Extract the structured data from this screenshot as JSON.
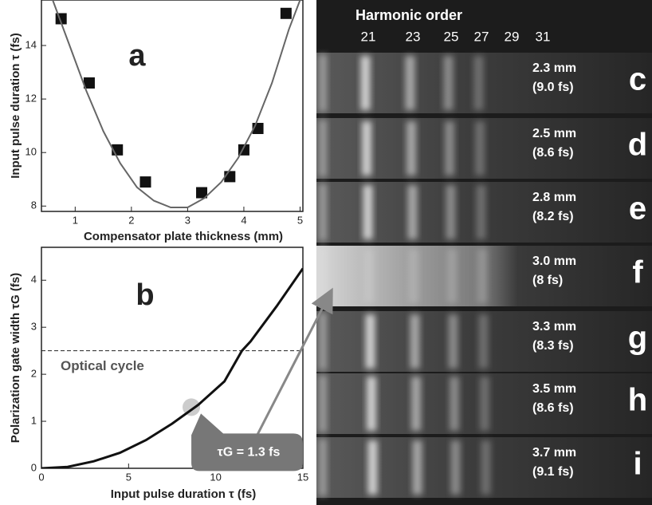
{
  "chart_data": [
    {
      "type": "scatter",
      "label": "a",
      "x_label": "Compensator plate thickness (mm)",
      "y_label": "Input pulse duration τ (fs)",
      "xlim": [
        0.4,
        5.05
      ],
      "ylim": [
        7.8,
        15.7
      ],
      "xticks": [
        1,
        2,
        3,
        4,
        5
      ],
      "yticks": [
        8,
        10,
        12,
        14
      ],
      "series": [
        {
          "marker": "square",
          "color": "#111111",
          "x": [
            0.75,
            1.25,
            1.75,
            2.25,
            3.25,
            3.75,
            4.0,
            4.25,
            4.75
          ],
          "values": [
            15.0,
            12.6,
            10.1,
            8.9,
            8.5,
            9.1,
            10.1,
            10.9,
            15.2
          ]
        },
        {
          "marker": "line",
          "color": "#666666",
          "x": [
            0.6,
            0.9,
            1.2,
            1.5,
            1.8,
            2.1,
            2.4,
            2.7,
            3.0,
            3.3,
            3.6,
            3.9,
            4.2,
            4.5,
            4.8,
            5.0
          ],
          "values": [
            15.7,
            14.0,
            12.3,
            10.8,
            9.6,
            8.7,
            8.2,
            7.95,
            7.95,
            8.3,
            8.9,
            9.8,
            11.0,
            12.6,
            14.6,
            15.7
          ]
        }
      ]
    },
    {
      "type": "line",
      "label": "b",
      "x_label": "Input pulse duration τ (fs)",
      "y_label": "Polarization gate width τG (fs)",
      "xlim": [
        0,
        15
      ],
      "ylim": [
        0,
        4.7
      ],
      "xticks": [
        0,
        5,
        10,
        15
      ],
      "yticks": [
        0,
        1,
        2,
        3,
        4
      ],
      "series": [
        {
          "marker": "line",
          "color": "#111111",
          "x": [
            0,
            1.5,
            3,
            4.5,
            6,
            7.5,
            9,
            10.5,
            11.5,
            12,
            13.5,
            15
          ],
          "values": [
            0,
            0.03,
            0.15,
            0.33,
            0.6,
            0.95,
            1.35,
            1.85,
            2.5,
            2.7,
            3.45,
            4.25
          ]
        }
      ],
      "hline": {
        "value": 2.5,
        "label": "Optical cycle"
      },
      "highlight": {
        "x": 8.6,
        "y": 1.3,
        "label": "τG = 1.3 fs"
      }
    }
  ],
  "image_panel": {
    "header": "Harmonic order",
    "orders": [
      21,
      23,
      25,
      27,
      29,
      31
    ],
    "strips": [
      {
        "thickness": "2.3 mm",
        "duration": "(9.0 fs)",
        "letter": "c"
      },
      {
        "thickness": "2.5 mm",
        "duration": "(8.6 fs)",
        "letter": "d"
      },
      {
        "thickness": "2.8 mm",
        "duration": "(8.2 fs)",
        "letter": "e"
      },
      {
        "thickness": "3.0 mm",
        "duration": "(8 fs)",
        "letter": "f"
      },
      {
        "thickness": "3.3 mm",
        "duration": "(8.3 fs)",
        "letter": "g"
      },
      {
        "thickness": "3.5 mm",
        "duration": "(8.6 fs)",
        "letter": "h"
      },
      {
        "thickness": "3.7 mm",
        "duration": "(9.1 fs)",
        "letter": "i"
      }
    ]
  }
}
